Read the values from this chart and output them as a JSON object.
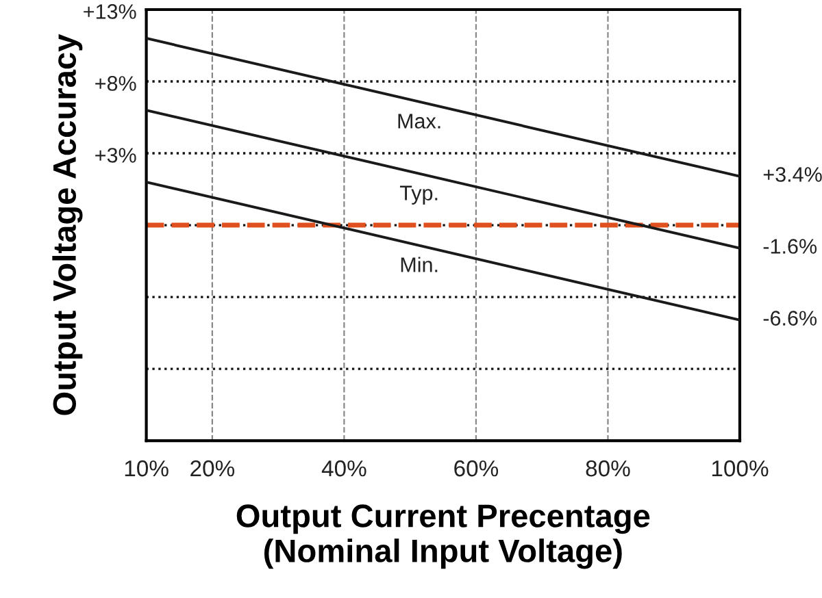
{
  "chart_data": {
    "type": "line",
    "xlabel": "Output Current Precentage\n(Nominal Input Voltage)",
    "ylabel": "Output Voltage Accuracy",
    "x": [
      10,
      100
    ],
    "series": [
      {
        "name": "Max.",
        "color": "#1a1a1a",
        "values": [
          13,
          3.4
        ],
        "value_labels": [
          "+13%",
          "+3.4%"
        ]
      },
      {
        "name": "Typ.",
        "color": "#1a1a1a",
        "values": [
          8,
          -1.6
        ],
        "value_labels": [
          "+8%",
          "-1.6%"
        ]
      },
      {
        "name": "Min.",
        "color": "#1a1a1a",
        "values": [
          3,
          -6.6
        ],
        "value_labels": [
          "+3%",
          "-6.6%"
        ]
      }
    ],
    "xlim": [
      10,
      100
    ],
    "xticks": [
      {
        "value": 10,
        "label": "10%"
      },
      {
        "value": 20,
        "label": "20%"
      },
      {
        "value": 40,
        "label": "40%"
      },
      {
        "value": 60,
        "label": "60%"
      },
      {
        "value": 80,
        "label": "80%"
      },
      {
        "value": 100,
        "label": "100%"
      }
    ],
    "ylim": [
      -15,
      15
    ],
    "yticks": [
      {
        "value": -10,
        "label": null
      },
      {
        "value": -5,
        "label": null
      },
      {
        "value": 0,
        "label": null
      },
      {
        "value": 5,
        "label": null
      },
      {
        "value": 10,
        "label": null
      }
    ],
    "tick_labels": "x",
    "grid": true,
    "line_style": "solid",
    "ref_lines": [
      {
        "axis": "y",
        "value": 0,
        "label": null,
        "color": "#e0501e",
        "line_style": "dashed"
      }
    ]
  }
}
